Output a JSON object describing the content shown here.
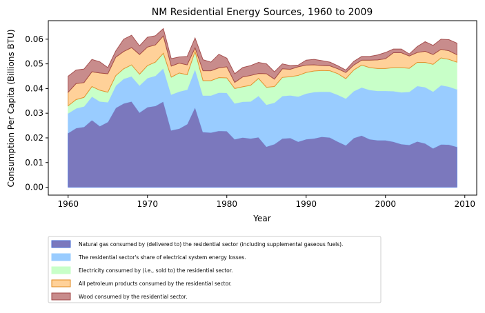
{
  "chart_data": {
    "type": "area",
    "stacked": true,
    "title": "NM Residential Energy Sources, 1960 to 2009",
    "xlabel": "Year",
    "ylabel": "Consumption Per Capita (Billions BTU)",
    "xlim": [
      1957.5,
      2011.5
    ],
    "ylim": [
      -0.0032,
      0.0675
    ],
    "xticks": [
      1960,
      1970,
      1980,
      1990,
      2000,
      2010
    ],
    "yticks": [
      0.0,
      0.01,
      0.02,
      0.03,
      0.04,
      0.05,
      0.06
    ],
    "ytick_labels": [
      "0.00",
      "0.01",
      "0.02",
      "0.03",
      "0.04",
      "0.05",
      "0.06"
    ],
    "grid": false,
    "legend_position": "below",
    "x": [
      1960,
      1961,
      1962,
      1963,
      1964,
      1965,
      1966,
      1967,
      1968,
      1969,
      1970,
      1971,
      1972,
      1973,
      1974,
      1975,
      1976,
      1977,
      1978,
      1979,
      1980,
      1981,
      1982,
      1983,
      1984,
      1985,
      1986,
      1987,
      1988,
      1989,
      1990,
      1991,
      1992,
      1993,
      1994,
      1995,
      1996,
      1997,
      1998,
      1999,
      2000,
      2001,
      2002,
      2003,
      2004,
      2005,
      2006,
      2007,
      2008,
      2009
    ],
    "series": [
      {
        "name": "Natural gas consumed by (delivered to) the residential sector (including supplemental gaseous fuels).",
        "color": "#7b78bd",
        "line": "#4a6fd6",
        "values": [
          0.022,
          0.024,
          0.0245,
          0.0273,
          0.0248,
          0.0265,
          0.0322,
          0.034,
          0.0348,
          0.0303,
          0.0325,
          0.033,
          0.0348,
          0.0231,
          0.0238,
          0.0256,
          0.0325,
          0.0224,
          0.0222,
          0.0229,
          0.0228,
          0.0195,
          0.0202,
          0.0198,
          0.0203,
          0.0165,
          0.0175,
          0.0198,
          0.02,
          0.0185,
          0.0195,
          0.0198,
          0.0205,
          0.0202,
          0.0185,
          0.017,
          0.02,
          0.021,
          0.0195,
          0.0191,
          0.0191,
          0.0185,
          0.0175,
          0.0172,
          0.0186,
          0.0178,
          0.0158,
          0.0174,
          0.0173,
          0.0164
        ]
      },
      {
        "name": "The residential sector's share of electrical system energy losses.",
        "color": "#99ccff",
        "values": [
          0.008,
          0.008,
          0.0083,
          0.0095,
          0.01,
          0.008,
          0.009,
          0.01,
          0.0102,
          0.011,
          0.0118,
          0.0122,
          0.0135,
          0.0145,
          0.015,
          0.014,
          0.0155,
          0.0148,
          0.015,
          0.0155,
          0.0155,
          0.0145,
          0.0145,
          0.015,
          0.0168,
          0.017,
          0.0168,
          0.0172,
          0.0173,
          0.0183,
          0.0185,
          0.0188,
          0.0183,
          0.0185,
          0.019,
          0.019,
          0.019,
          0.0195,
          0.02,
          0.02,
          0.02,
          0.0205,
          0.021,
          0.0215,
          0.0225,
          0.0228,
          0.023,
          0.024,
          0.0235,
          0.0233
        ]
      },
      {
        "name": "Electricity consumed by (i.e., sold to) the residential sector.",
        "color": "#c8ffc8",
        "values": [
          0.003,
          0.0035,
          0.0036,
          0.004,
          0.0045,
          0.004,
          0.004,
          0.004,
          0.0046,
          0.0045,
          0.005,
          0.0055,
          0.006,
          0.007,
          0.0075,
          0.006,
          0.007,
          0.006,
          0.006,
          0.006,
          0.006,
          0.006,
          0.006,
          0.0065,
          0.007,
          0.007,
          0.0065,
          0.0075,
          0.0075,
          0.0085,
          0.0085,
          0.0085,
          0.0085,
          0.0085,
          0.0085,
          0.008,
          0.0085,
          0.009,
          0.009,
          0.009,
          0.009,
          0.0095,
          0.01,
          0.0095,
          0.0095,
          0.01,
          0.011,
          0.011,
          0.011,
          0.011
        ]
      },
      {
        "name": "All petroleum products consumed by the residential sector.",
        "color": "#ffd199",
        "line": "#e08a20",
        "values": [
          0.0055,
          0.0065,
          0.006,
          0.006,
          0.007,
          0.0075,
          0.0075,
          0.007,
          0.007,
          0.008,
          0.0075,
          0.007,
          0.007,
          0.0045,
          0.004,
          0.004,
          0.0015,
          0.004,
          0.004,
          0.004,
          0.0045,
          0.0025,
          0.004,
          0.004,
          0.002,
          0.0055,
          0.003,
          0.0035,
          0.003,
          0.0035,
          0.003,
          0.0025,
          0.002,
          0.002,
          0.002,
          0.0025,
          0.002,
          0.002,
          0.003,
          0.0035,
          0.004,
          0.006,
          0.006,
          0.005,
          0.004,
          0.0045,
          0.004,
          0.0035,
          0.0035,
          0.003
        ]
      },
      {
        "name": "Wood consumed by the residential sector.",
        "color": "#c88c8c",
        "line": "#a04646",
        "values": [
          0.0065,
          0.0055,
          0.0055,
          0.005,
          0.0045,
          0.0025,
          0.0025,
          0.005,
          0.005,
          0.0035,
          0.004,
          0.0037,
          0.003,
          0.003,
          0.0025,
          0.0034,
          0.004,
          0.0045,
          0.0035,
          0.0055,
          0.0035,
          0.0035,
          0.0038,
          0.004,
          0.0045,
          0.004,
          0.003,
          0.002,
          0.0015,
          0.0007,
          0.002,
          0.0022,
          0.002,
          0.0015,
          0.0012,
          0.001,
          0.0015,
          0.0015,
          0.0015,
          0.002,
          0.0025,
          0.0015,
          0.0015,
          0.0008,
          0.0024,
          0.0039,
          0.0037,
          0.0041,
          0.0045,
          0.0047
        ]
      }
    ]
  }
}
